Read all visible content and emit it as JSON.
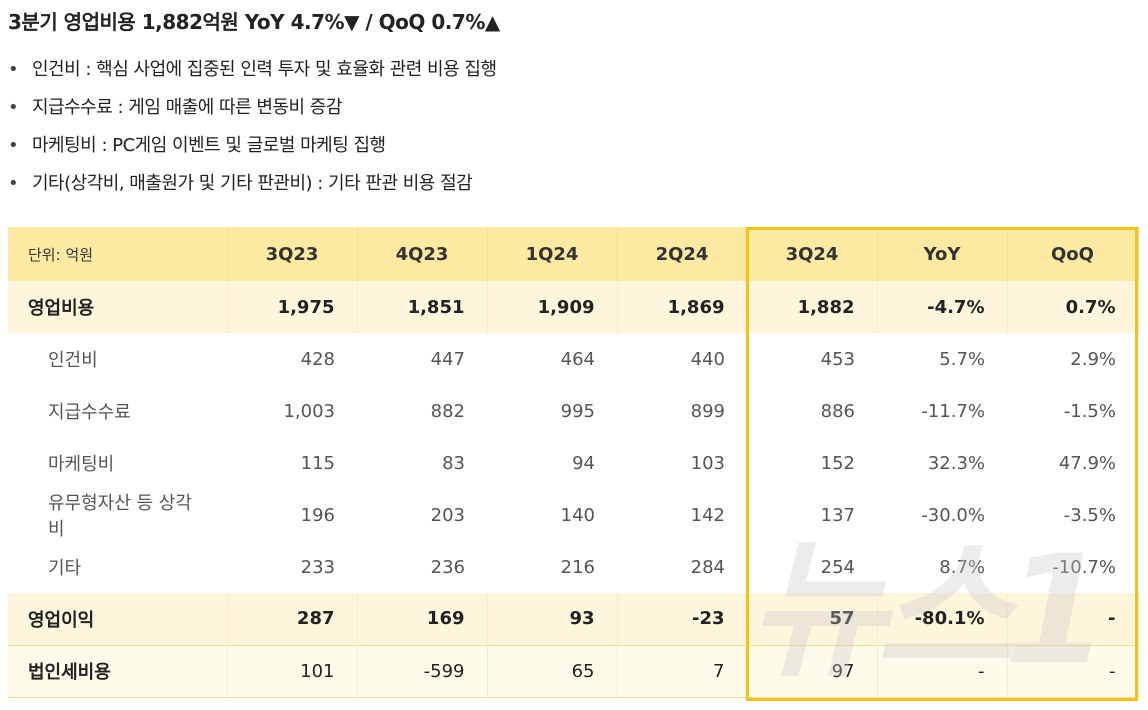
{
  "header": {
    "title": "3분기 영업비용 1,882억원 YoY 4.7%▼ / QoQ 0.7%▲"
  },
  "bullets": [
    "인건비 : 핵심 사업에 집중된 인력 투자 및 효율화 관련 비용 집행",
    "지급수수료 : 게임 매출에 따른 변동비 증감",
    "마케팅비 : PC게임 이벤트 및 글로벌 마케팅 집행",
    "기타(상각비, 매출원가 및 기타 판관비) : 기타 판관 비용 절감"
  ],
  "table": {
    "columns": [
      "단위: 억원",
      "3Q23",
      "4Q23",
      "1Q24",
      "2Q24",
      "3Q24",
      "YoY",
      "QoQ"
    ],
    "rows": [
      [
        "영업비용",
        "1,975",
        "1,851",
        "1,909",
        "1,869",
        "1,882",
        "-4.7%",
        "0.7%"
      ],
      [
        "인건비",
        "428",
        "447",
        "464",
        "440",
        "453",
        "5.7%",
        "2.9%"
      ],
      [
        "지급수수료",
        "1,003",
        "882",
        "995",
        "899",
        "886",
        "-11.7%",
        "-1.5%"
      ],
      [
        "마케팅비",
        "115",
        "83",
        "94",
        "103",
        "152",
        "32.3%",
        "47.9%"
      ],
      [
        "유무형자산 등 상각비",
        "196",
        "203",
        "140",
        "142",
        "137",
        "-30.0%",
        "-3.5%"
      ],
      [
        "기타",
        "233",
        "236",
        "216",
        "284",
        "254",
        "8.7%",
        "-10.7%"
      ],
      [
        "영업이익",
        "287",
        "169",
        "93",
        "-23",
        "57",
        "-80.1%",
        "-"
      ],
      [
        "법인세비용",
        "101",
        "-599",
        "65",
        "7",
        "97",
        "-",
        "-"
      ]
    ]
  },
  "watermark": "뉴스1"
}
